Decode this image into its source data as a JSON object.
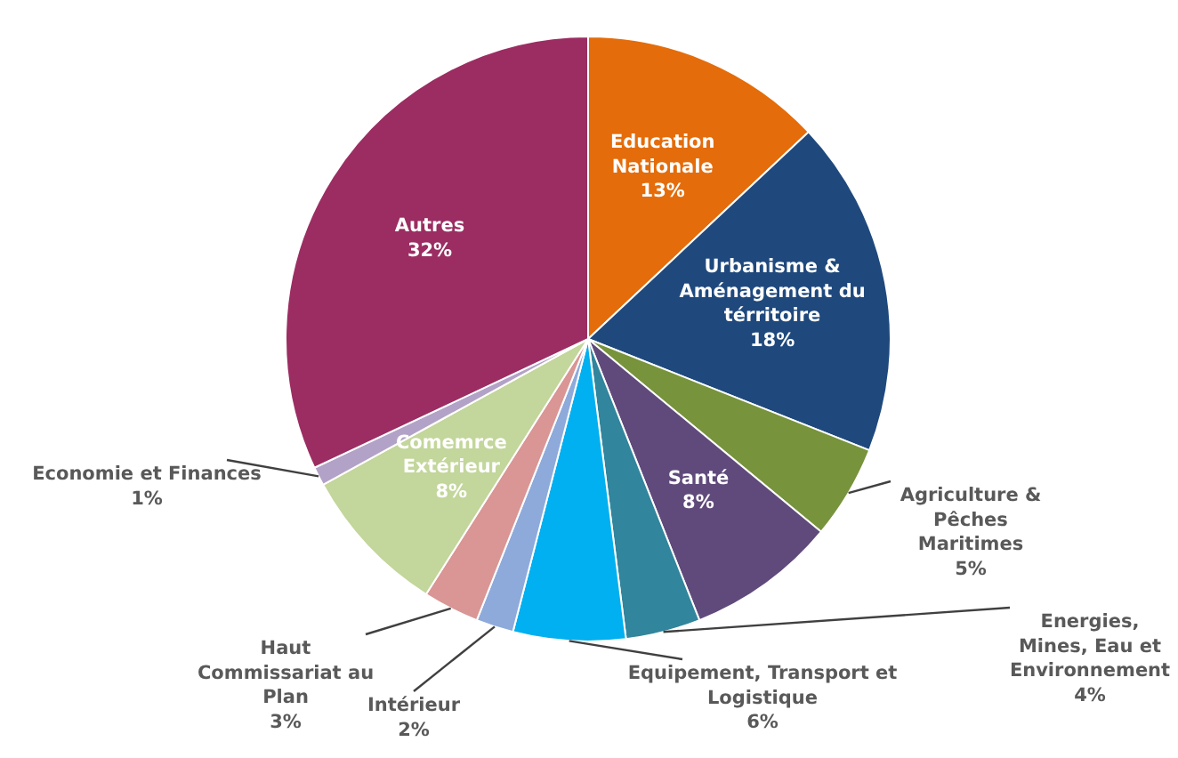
{
  "chart_data": {
    "type": "pie",
    "categories": [
      "Education Nationale",
      "Urbanisme & Aménagement du térritoire",
      "Agriculture & Pêches Maritimes",
      "Santé",
      "Energies, Mines, Eau et Environnement",
      "Equipement, Transport et Logistique",
      "Intérieur",
      "Haut Commissariat au Plan",
      "Comemrce Extérieur",
      "Economie et Finances",
      "Autres"
    ],
    "values": [
      13,
      18,
      5,
      8,
      4,
      6,
      2,
      3,
      8,
      1,
      32
    ],
    "value_labels": [
      "13%",
      "18%",
      "5%",
      "8%",
      "4%",
      "6%",
      "2%",
      "3%",
      "8%",
      "1%",
      "32%"
    ],
    "colors": [
      "#e46c0a",
      "#1f497d",
      "#77933c",
      "#604a7b",
      "#31859c",
      "#00b0f0",
      "#8eaadb",
      "#d99694",
      "#c3d69b",
      "#b3a2c7",
      "#9b2d62"
    ]
  }
}
